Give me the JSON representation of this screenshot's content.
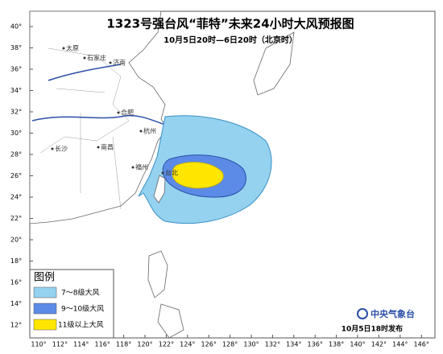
{
  "title": "1323号强台风“菲特”未来24小时大风预报图",
  "subtitle": "10月5日20时—6日20时（北京时）",
  "latitude_labels": [
    "40°",
    "38°",
    "36°",
    "34°",
    "32°",
    "30°",
    "28°",
    "26°",
    "24°",
    "22°",
    "20°",
    "18°",
    "16°",
    "14°",
    "12°"
  ],
  "longitude_labels": [
    "110°",
    "112°",
    "114°",
    "116°",
    "118°",
    "120°",
    "122°",
    "124°",
    "126°",
    "128°",
    "130°",
    "132°",
    "134°",
    "136°",
    "138°",
    "140°",
    "142°",
    "144°",
    "146°"
  ],
  "cities": [
    "太原",
    "石家庄",
    "济南",
    "合肥",
    "杭州",
    "长沙",
    "南昌",
    "福州",
    "台北"
  ],
  "legend": {
    "title": "图例",
    "items": [
      "7～8级大风",
      "9～10级大风",
      "11级以上大风"
    ]
  },
  "footer": {
    "agency": "中央气象台",
    "issued": "10月5日18时发布"
  }
}
